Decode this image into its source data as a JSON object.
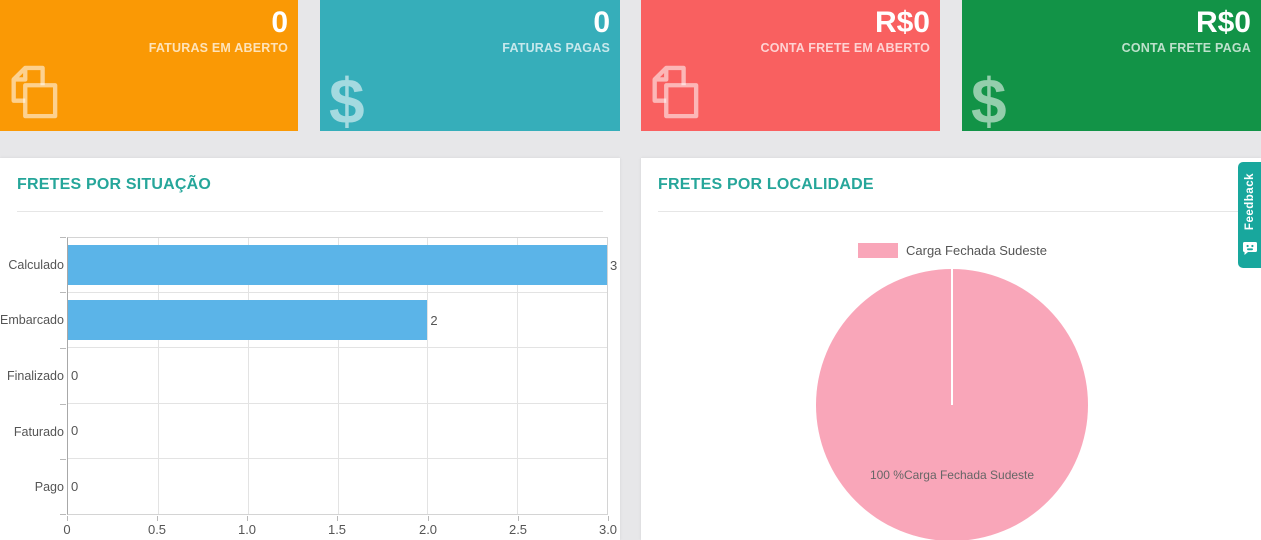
{
  "page": {
    "background_color": "#E7E7E9"
  },
  "kpi_cards": [
    {
      "value": "0",
      "label": "FATURAS EM ABERTO",
      "icon": "copy-pages-icon",
      "color": "#FA9905"
    },
    {
      "value": "0",
      "label": "FATURAS PAGAS",
      "icon": "dollar-icon",
      "color": "#36AEBA"
    },
    {
      "value": "R$0",
      "label": "CONTA FRETE EM ABERTO",
      "icon": "copy-pages-icon",
      "color": "#F96060"
    },
    {
      "value": "R$0",
      "label": "CONTA FRETE PAGA",
      "icon": "dollar-icon",
      "color": "#129347"
    }
  ],
  "feedback": {
    "label": "Feedback",
    "icon": "feedback-smiley-icon",
    "color": "#18A79D"
  },
  "chart_data": [
    {
      "type": "bar",
      "orientation": "horizontal",
      "title": "FRETES POR SITUAÇÃO",
      "title_color": "#26A69A",
      "categories": [
        "Calculado",
        "Embarcado",
        "Finalizado",
        "Faturado",
        "Pago"
      ],
      "values": [
        3,
        2,
        0,
        0,
        0
      ],
      "xlabel": "",
      "ylabel": "",
      "xlim": [
        0,
        3
      ],
      "x_ticks": [
        "0",
        "0.5",
        "1.0",
        "1.5",
        "2.0",
        "2.5",
        "3.0"
      ],
      "bar_color": "#5BB4E8",
      "grid": true,
      "legend_position": "none"
    },
    {
      "type": "pie",
      "title": "FRETES POR LOCALIDADE",
      "title_color": "#26A69A",
      "labels": [
        "Carga Fechada Sudeste"
      ],
      "values": [
        100
      ],
      "colors": [
        "#F9A6B9"
      ],
      "slice_label": "100 %Carga Fechada Sudeste",
      "legend_position": "top"
    }
  ]
}
